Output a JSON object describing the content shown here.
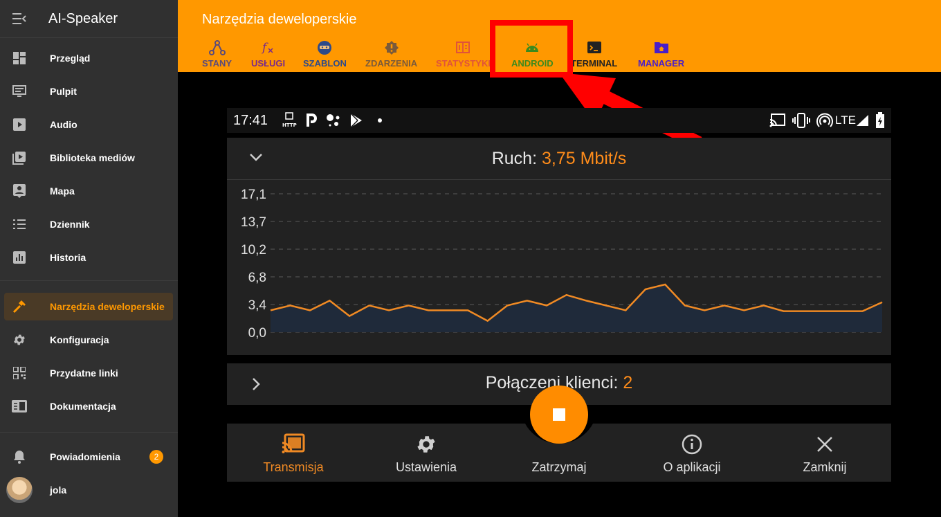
{
  "app": {
    "title": "AI-Speaker",
    "menu_icon": "menu-collapse-icon"
  },
  "sidebar": {
    "items": [
      {
        "label": "Przegląd",
        "icon": "dashboard-icon"
      },
      {
        "label": "Pulpit",
        "icon": "monitor-icon"
      },
      {
        "label": "Audio",
        "icon": "play-box-icon"
      },
      {
        "label": "Biblioteka mediów",
        "icon": "media-library-icon"
      },
      {
        "label": "Mapa",
        "icon": "map-person-icon"
      },
      {
        "label": "Dziennik",
        "icon": "list-icon"
      },
      {
        "label": "Historia",
        "icon": "bar-chart-icon"
      }
    ],
    "active_item": {
      "label": "Narzędzia deweloperskie",
      "icon": "hammer-icon"
    },
    "items2": [
      {
        "label": "Konfiguracja",
        "icon": "gear-icon"
      },
      {
        "label": "Przydatne linki",
        "icon": "qr-code-icon"
      },
      {
        "label": "Dokumentacja",
        "icon": "book-icon"
      }
    ],
    "notifications": {
      "label": "Powiadomienia",
      "icon": "bell-icon",
      "count": "2"
    },
    "user": {
      "label": "jola"
    }
  },
  "topbar": {
    "title": "Narzędzia deweloperskie",
    "tabs": [
      {
        "label": "STANY",
        "color": "#5a4a7a",
        "icon": "states-icon"
      },
      {
        "label": "USŁUGI",
        "color": "#7a2a8a",
        "icon": "function-icon"
      },
      {
        "label": "SZABLON",
        "color": "#2d4a8a",
        "icon": "template-icon"
      },
      {
        "label": "ZDARZENIA",
        "color": "#7a5a3a",
        "icon": "alert-icon"
      },
      {
        "label": "STATYSTYKI",
        "color": "#e0533a",
        "icon": "stats-icon"
      },
      {
        "label": "ANDROID",
        "color": "#3b8a1e",
        "icon": "android-icon"
      },
      {
        "label": "TERMINAL",
        "color": "#222222",
        "icon": "terminal-icon"
      },
      {
        "label": "MANAGER",
        "color": "#4a1ec8",
        "icon": "home-folder-icon"
      }
    ]
  },
  "phone": {
    "status_bar": {
      "time": "17:41",
      "http_label": "HTTP",
      "network": "LTE"
    },
    "traffic": {
      "label": "Ruch: ",
      "value": "3,75 Mbit/s"
    },
    "clients": {
      "label": "Połączeni klienci: ",
      "value": "2"
    },
    "bottom_nav": [
      {
        "label": "Transmisja",
        "icon": "cast-icon",
        "active": true
      },
      {
        "label": "Ustawienia",
        "icon": "gear-icon",
        "active": false
      },
      {
        "label": "Zatrzymaj",
        "icon": "stop-icon",
        "active": false
      },
      {
        "label": "O aplikacji",
        "icon": "info-icon",
        "active": false
      },
      {
        "label": "Zamknij",
        "icon": "close-icon",
        "active": false
      }
    ]
  },
  "chart_data": {
    "type": "area",
    "title": "",
    "xlabel": "",
    "ylabel": "",
    "y_ticks": [
      "17,1",
      "13,7",
      "10,2",
      "6,8",
      "3,4",
      "0,0"
    ],
    "ylim": [
      0,
      17.1
    ],
    "grid": true,
    "series": [
      {
        "values": [
          2.7,
          3.3,
          2.7,
          3.9,
          2.0,
          3.3,
          2.7,
          3.3,
          2.7,
          2.7,
          2.7,
          1.4,
          3.3,
          3.9,
          3.3,
          4.6,
          3.9,
          3.3,
          2.7,
          5.3,
          5.9,
          3.3,
          2.7,
          3.3,
          2.7,
          3.3,
          2.6,
          2.6,
          2.6,
          2.6,
          2.6,
          3.7
        ]
      }
    ],
    "colors": {
      "line": "#f08a24",
      "fill": "#1f2a3a"
    }
  }
}
